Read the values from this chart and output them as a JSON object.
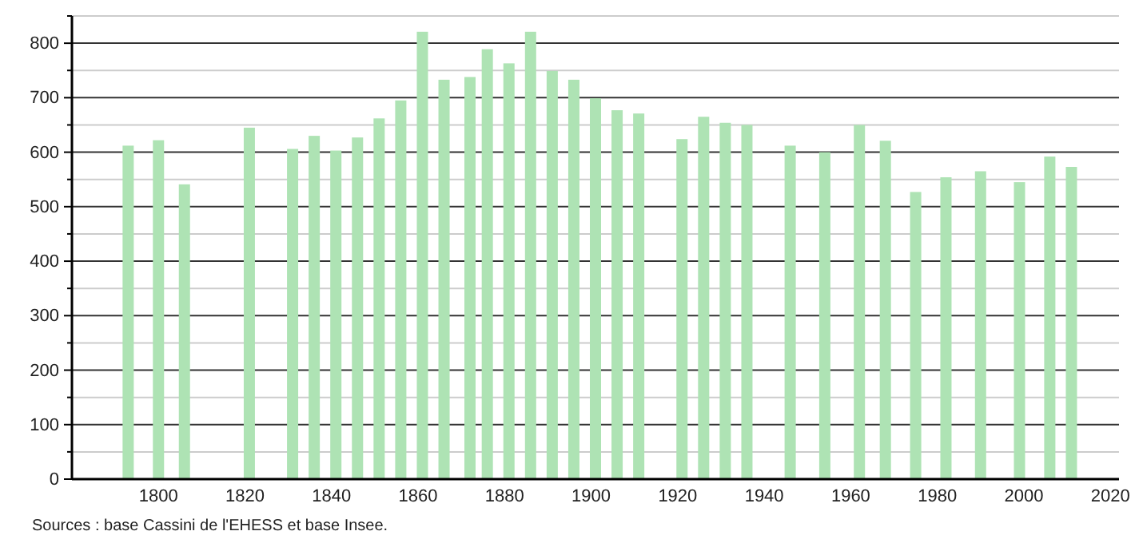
{
  "chart_data": {
    "type": "bar",
    "x": [
      1793,
      1800,
      1806,
      1821,
      1831,
      1836,
      1841,
      1846,
      1851,
      1856,
      1861,
      1866,
      1872,
      1876,
      1881,
      1886,
      1891,
      1896,
      1901,
      1906,
      1911,
      1921,
      1926,
      1931,
      1936,
      1946,
      1954,
      1962,
      1968,
      1975,
      1982,
      1990,
      1999,
      2006,
      2011
    ],
    "values": [
      612,
      622,
      541,
      645,
      606,
      630,
      603,
      627,
      662,
      695,
      821,
      733,
      738,
      789,
      763,
      821,
      749,
      733,
      699,
      677,
      671,
      624,
      665,
      654,
      650,
      612,
      600,
      650,
      621,
      527,
      554,
      565,
      545,
      592,
      573
    ],
    "color": "#aee3b4",
    "xlim": [
      1780,
      2022
    ],
    "xticks": [
      1800,
      1820,
      1840,
      1860,
      1880,
      1900,
      1920,
      1940,
      1960,
      1980,
      2000,
      2020
    ],
    "ylim": [
      0,
      850
    ],
    "yticks": [
      0,
      {
        "value": 50,
        "label": null
      },
      100,
      {
        "value": 150,
        "label": null
      },
      200,
      {
        "value": 250,
        "label": null
      },
      300,
      {
        "value": 350,
        "label": null
      },
      400,
      {
        "value": 450,
        "label": null
      },
      500,
      {
        "value": 550,
        "label": null
      },
      600,
      {
        "value": 650,
        "label": null
      },
      700,
      {
        "value": 750,
        "label": null
      },
      800,
      {
        "value": 850,
        "label": null
      }
    ],
    "grid": "y",
    "annotations": [
      "Sources : base Cassini de l'EHESS et base Insee."
    ]
  }
}
